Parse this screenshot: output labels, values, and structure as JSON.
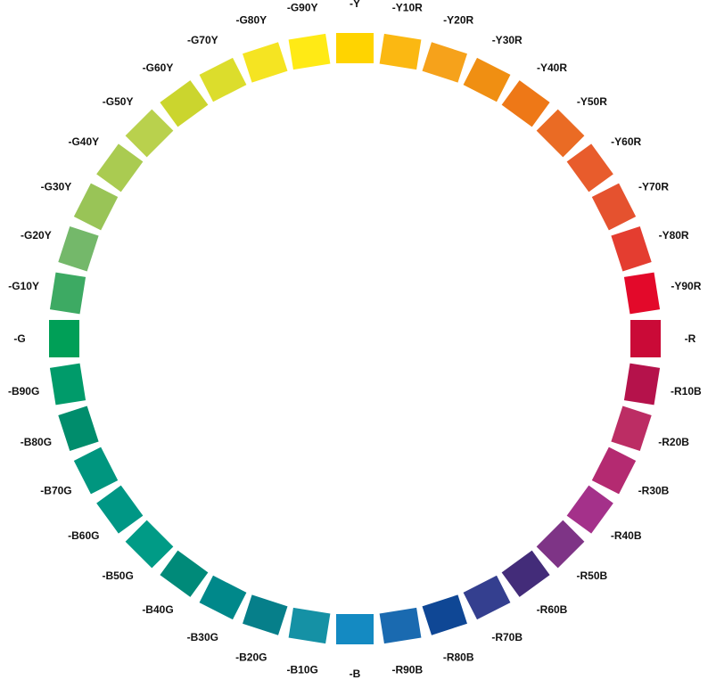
{
  "hues": [
    {
      "label": "-Y",
      "color": "#FFD400"
    },
    {
      "label": "-Y10R",
      "color": "#FBB812"
    },
    {
      "label": "-Y20R",
      "color": "#F6A21B"
    },
    {
      "label": "-Y30R",
      "color": "#F08F12"
    },
    {
      "label": "-Y40R",
      "color": "#EE7817"
    },
    {
      "label": "-Y50R",
      "color": "#EA6B24"
    },
    {
      "label": "-Y60R",
      "color": "#E85C2C"
    },
    {
      "label": "-Y70R",
      "color": "#E5522F"
    },
    {
      "label": "-Y80R",
      "color": "#E43D30"
    },
    {
      "label": "-Y90R",
      "color": "#E3092A"
    },
    {
      "label": "-R",
      "color": "#CA0A37"
    },
    {
      "label": "-R10B",
      "color": "#B5124B"
    },
    {
      "label": "-R20B",
      "color": "#BC2D64"
    },
    {
      "label": "-R30B",
      "color": "#B42A71"
    },
    {
      "label": "-R40B",
      "color": "#A4318A"
    },
    {
      "label": "-R50B",
      "color": "#7E3486"
    },
    {
      "label": "-R60B",
      "color": "#432C79"
    },
    {
      "label": "-R70B",
      "color": "#343F8F"
    },
    {
      "label": "-R80B",
      "color": "#0F4795"
    },
    {
      "label": "-R90B",
      "color": "#1A6AB0"
    },
    {
      "label": "-B",
      "color": "#148AC2"
    },
    {
      "label": "-B10G",
      "color": "#1591A5"
    },
    {
      "label": "-B20G",
      "color": "#067F8A"
    },
    {
      "label": "-B30G",
      "color": "#00888A"
    },
    {
      "label": "-B40G",
      "color": "#008A79"
    },
    {
      "label": "-B50G",
      "color": "#009B86"
    },
    {
      "label": "-B60G",
      "color": "#009785"
    },
    {
      "label": "-B70G",
      "color": "#00967F"
    },
    {
      "label": "-B80G",
      "color": "#008D6C"
    },
    {
      "label": "-B90G",
      "color": "#009B6A"
    },
    {
      "label": "-G",
      "color": "#009F57"
    },
    {
      "label": "-G10Y",
      "color": "#3DAA63"
    },
    {
      "label": "-G20Y",
      "color": "#74B86A"
    },
    {
      "label": "-G30Y",
      "color": "#99C457"
    },
    {
      "label": "-G40Y",
      "color": "#AACB51"
    },
    {
      "label": "-G50Y",
      "color": "#B9D14D"
    },
    {
      "label": "-G60Y",
      "color": "#CBD52E"
    },
    {
      "label": "-G70Y",
      "color": "#DCDD2C"
    },
    {
      "label": "-G80Y",
      "color": "#F5E422"
    },
    {
      "label": "-G90Y",
      "color": "#FFEA15"
    }
  ]
}
